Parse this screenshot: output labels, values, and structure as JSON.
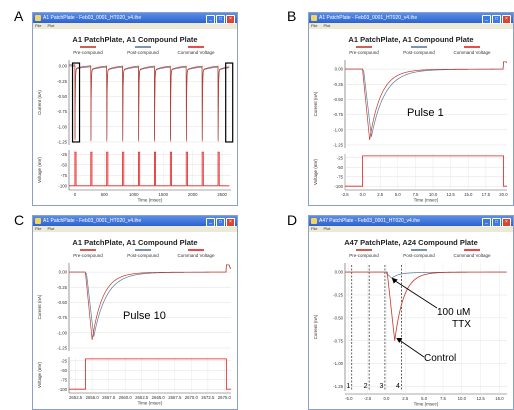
{
  "panels": [
    {
      "letter": "A",
      "window_title": "A1 PatchPlate - Feb03_0001_HT020_v4.ihe",
      "menu": [
        "File",
        "Plot"
      ],
      "chart_title": "A1 PatchPlate, A1 Compound Plate",
      "legend": [
        "Pre-compound",
        "Post-compound",
        "Command Voltage"
      ]
    },
    {
      "letter": "B",
      "window_title": "A1 PatchPlate - Feb03_0001_HT020_v4.ihe",
      "menu": [
        "File",
        "Plot"
      ],
      "chart_title": "A1 PatchPlate, A1 Compound Plate",
      "legend": [
        "Pre-compound",
        "Post-compound",
        "Command Voltage"
      ]
    },
    {
      "letter": "C",
      "window_title": "A1 PatchPlate - Feb03_0001_HT020_v4.ihe",
      "menu": [
        "File",
        "Plot"
      ],
      "chart_title": "A1 PatchPlate, A1 Compound Plate",
      "legend": [
        "Pre-compound",
        "Post-compound",
        "Command Voltage"
      ]
    },
    {
      "letter": "D",
      "window_title": "A47 PatchPlate - Feb03_0001_HT020_v4.ihe",
      "menu": [
        "File",
        "Plot"
      ],
      "chart_title": "A47 PatchPlate, A24 Compound Plate",
      "legend": [
        "Pre-compound",
        "Post-compound",
        "Command Voltage"
      ]
    }
  ],
  "overlays": {
    "b": "Pulse 1",
    "c": "Pulse 10",
    "d_ttx": [
      "100 uM",
      "TTX"
    ],
    "d_control": "Control"
  },
  "colors": {
    "pre": "#c0392b",
    "post": "#5b7a99",
    "command": "#e02020",
    "titlebar": "#2d62cf"
  },
  "chart_data": [
    {
      "panel": "A",
      "type": "line",
      "series": [
        {
          "name": "Pre-compound"
        },
        {
          "name": "Post-compound"
        },
        {
          "name": "Command Voltage"
        }
      ],
      "top": {
        "ylabel": "Current (nA)",
        "yticks": [
          "0.00",
          "-0.25",
          "-0.50",
          "-0.75",
          "-1.00",
          "-1.25"
        ],
        "ylim": [
          -1.3,
          0.1
        ]
      },
      "bottom": {
        "ylabel": "Voltage (mV)",
        "yticks": [
          "-25",
          "-50",
          "-75",
          "-100"
        ],
        "ylim": [
          -110,
          -15
        ]
      },
      "xlabel": "Time (msec)",
      "xticks": [
        "0",
        "500",
        "1000",
        "1500",
        "2000",
        "2500"
      ],
      "xlim": [
        -100,
        2650
      ],
      "pulse_times": [
        0,
        270,
        540,
        810,
        1080,
        1350,
        1620,
        1890,
        2160,
        2430
      ],
      "pulse_peak": -1.2,
      "pulse_voltage": [
        -100,
        -20
      ]
    },
    {
      "panel": "B",
      "type": "line",
      "series": [
        {
          "name": "Pre-compound"
        },
        {
          "name": "Post-compound"
        },
        {
          "name": "Command Voltage"
        }
      ],
      "top": {
        "ylabel": "Current (nA)",
        "yticks": [
          "0.00",
          "-0.25",
          "-0.50",
          "-0.75",
          "-1.00",
          "-1.25"
        ],
        "ylim": [
          -1.3,
          0.15
        ]
      },
      "bottom": {
        "ylabel": "Voltage (mV)",
        "yticks": [
          "-25",
          "-50",
          "-75",
          "-100"
        ],
        "ylim": [
          -110,
          -15
        ]
      },
      "xlabel": "Time (msec)",
      "xticks": [
        "-2.5",
        "0.0",
        "2.5",
        "5.0",
        "7.5",
        "10.0",
        "12.5",
        "15.0",
        "17.5",
        "20.0"
      ],
      "xlim": [
        -2.5,
        20.5
      ],
      "peak": -1.15,
      "step_start": 0,
      "step_end": 20
    },
    {
      "panel": "C",
      "type": "line",
      "series": [
        {
          "name": "Pre-compound"
        },
        {
          "name": "Post-compound"
        },
        {
          "name": "Command Voltage"
        }
      ],
      "top": {
        "ylabel": "Current (nA)",
        "yticks": [
          "0.00",
          "-0.25",
          "-0.50",
          "-0.75",
          "-1.00",
          "-1.25"
        ],
        "ylim": [
          -1.3,
          0.15
        ]
      },
      "bottom": {
        "ylabel": "Voltage (mV)",
        "yticks": [
          "-25",
          "-50",
          "-75",
          "-100"
        ],
        "ylim": [
          -110,
          -15
        ]
      },
      "xlabel": "Time (msec)",
      "xticks": [
        "2652.5",
        "2655.0",
        "2657.5",
        "2660.0",
        "2662.5",
        "2665.0",
        "2667.5",
        "2670.0",
        "2672.5",
        "2675.0"
      ],
      "xlim": [
        2651.5,
        2676
      ],
      "peak": -1.1,
      "step_start": 2654,
      "step_end": 2675.3
    },
    {
      "panel": "D",
      "type": "line",
      "series": [
        {
          "name": "Pre-compound"
        },
        {
          "name": "Post-compound"
        },
        {
          "name": "Command Voltage"
        }
      ],
      "top": {
        "ylabel": "Current (nA)",
        "yticks": [
          "0.00",
          "-0.25",
          "-0.50",
          "-0.75",
          "-1.00",
          "-1.25"
        ],
        "ylim": [
          -1.3,
          0.1
        ]
      },
      "xlabel": "Time (msec)",
      "xticks": [
        "-5.0",
        "-2.5",
        "0.0",
        "2.5",
        "5.0",
        "7.5",
        "10.0",
        "12.5",
        "15.0"
      ],
      "xlim": [
        -5.5,
        16
      ],
      "control_peak": -0.75,
      "ttx_peak": -0.05,
      "markers": [
        {
          "label": "1",
          "x": -4.6
        },
        {
          "label": "2",
          "x": -2.3
        },
        {
          "label": "3",
          "x": -0.2
        },
        {
          "label": "4",
          "x": 2.0
        }
      ]
    }
  ]
}
